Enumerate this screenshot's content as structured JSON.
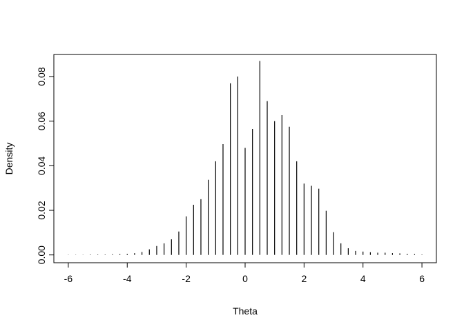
{
  "chart_data": {
    "type": "spike",
    "xlabel": "Theta",
    "ylabel": "Density",
    "color": "#000000",
    "x": [
      -6,
      -5.75,
      -5.5,
      -5.25,
      -5,
      -4.75,
      -4.5,
      -4.25,
      -4,
      -3.75,
      -3.5,
      -3.25,
      -3,
      -2.75,
      -2.5,
      -2.25,
      -2,
      -1.75,
      -1.5,
      -1.25,
      -1,
      -0.75,
      -0.5,
      -0.25,
      0,
      0.25,
      0.5,
      0.75,
      1,
      1.25,
      1.5,
      1.75,
      2,
      2.25,
      2.5,
      2.75,
      3,
      3.25,
      3.5,
      3.75,
      4,
      4.25,
      4.5,
      4.75,
      5,
      5.25,
      5.5,
      5.75,
      6
    ],
    "values": [
      0.0001,
      0.0001,
      0.0001,
      0.0002,
      0.0002,
      0.0002,
      0.0003,
      0.0004,
      0.0005,
      0.0008,
      0.0013,
      0.0025,
      0.004,
      0.0052,
      0.007,
      0.0105,
      0.0173,
      0.0225,
      0.025,
      0.0337,
      0.042,
      0.0497,
      0.077,
      0.08,
      0.048,
      0.0565,
      0.087,
      0.069,
      0.06,
      0.0627,
      0.0575,
      0.042,
      0.032,
      0.031,
      0.0297,
      0.0198,
      0.0102,
      0.0052,
      0.003,
      0.0018,
      0.0015,
      0.0012,
      0.001,
      0.001,
      0.0008,
      0.0007,
      0.0005,
      0.0004,
      0.0002
    ],
    "xlim": [
      -6.49,
      6.49
    ],
    "ylim": [
      -0.0035,
      0.0899
    ],
    "xticks": [
      -6,
      -4,
      -2,
      0,
      2,
      4,
      6
    ],
    "yticks": [
      {
        "value": 0,
        "label": "0.00"
      },
      {
        "value": 0.02,
        "label": "0.02"
      },
      {
        "value": 0.04,
        "label": "0.04"
      },
      {
        "value": 0.06,
        "label": "0.06"
      },
      {
        "value": 0.08,
        "label": "0.08"
      }
    ]
  }
}
